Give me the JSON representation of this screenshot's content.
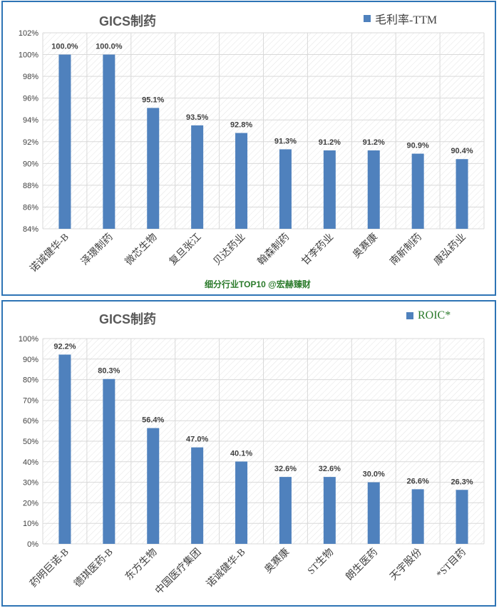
{
  "colors": {
    "bar": "#4f81bd",
    "border": "#2e74b5",
    "title": "#595959",
    "legend_text_1": "#404040",
    "legend_text_2": "#2a7a2a",
    "subtitle": "#2a7a2a",
    "grid": "#d9d9d9",
    "hatch": "#e4e4e4"
  },
  "footer_text": "细分行业TOP10 @宏赫臻财",
  "chart_data": [
    {
      "type": "bar",
      "title": "GICS制药",
      "legend": "毛利率-TTM",
      "categories": [
        "诺诚健华-B",
        "泽璟制药",
        "微芯生物",
        "复旦张江",
        "贝达药业",
        "翰森制药",
        "甘李药业",
        "奥赛康",
        "南新制药",
        "康弘药业"
      ],
      "series": [
        {
          "name": "毛利率-TTM",
          "values": [
            100.0,
            100.0,
            95.1,
            93.5,
            92.8,
            91.3,
            91.2,
            91.2,
            90.9,
            90.4
          ],
          "labels": [
            "100.0%",
            "100.0%",
            "95.1%",
            "93.5%",
            "92.8%",
            "91.3%",
            "91.2%",
            "91.2%",
            "90.9%",
            "90.4%"
          ]
        }
      ],
      "ylim": [
        84,
        102
      ],
      "yticks": [
        "84%",
        "86%",
        "88%",
        "90%",
        "92%",
        "94%",
        "96%",
        "98%",
        "100%",
        "102%"
      ],
      "grid": true,
      "legend_position": "top-right"
    },
    {
      "type": "bar",
      "title": "GICS制药",
      "legend": "ROIC*",
      "categories": [
        "药明巨诺-B",
        "德琪医药-B",
        "东方生物",
        "中国医疗集团",
        "诺诚健华-B",
        "奥赛康",
        "ST生物",
        "朗生医药",
        "天宇股份",
        "*ST目药"
      ],
      "series": [
        {
          "name": "ROIC*",
          "values": [
            92.2,
            80.3,
            56.4,
            47.0,
            40.1,
            32.6,
            32.6,
            30.0,
            26.6,
            26.3
          ],
          "labels": [
            "92.2%",
            "80.3%",
            "56.4%",
            "47.0%",
            "40.1%",
            "32.6%",
            "32.6%",
            "30.0%",
            "26.6%",
            "26.3%"
          ]
        }
      ],
      "ylim": [
        0,
        100
      ],
      "yticks": [
        "0%",
        "10%",
        "20%",
        "30%",
        "40%",
        "50%",
        "60%",
        "70%",
        "80%",
        "90%",
        "100%"
      ],
      "grid": true,
      "legend_position": "top-right"
    }
  ]
}
